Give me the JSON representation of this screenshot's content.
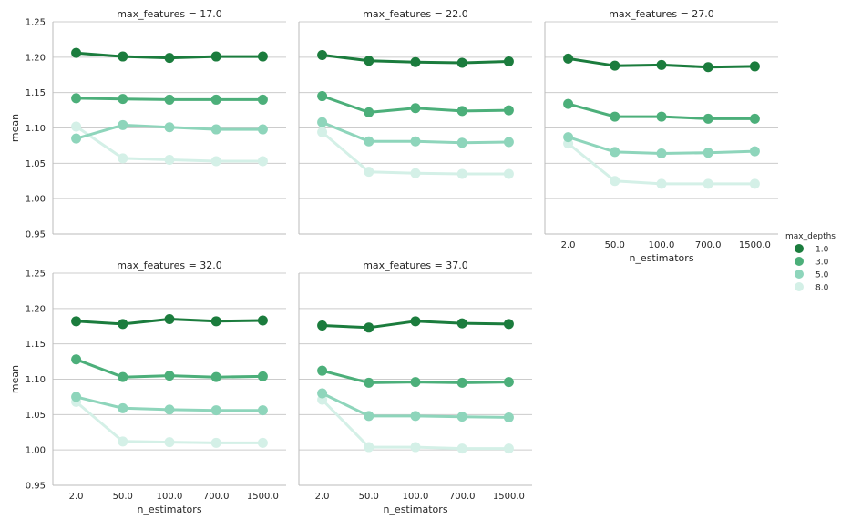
{
  "chart_data": {
    "type": "line",
    "facet_title_prefix": "max_features = ",
    "x_categories": [
      "2.0",
      "50.0",
      "100.0",
      "700.0",
      "1500.0"
    ],
    "xlabel": "n_estimators",
    "ylabel": "mean",
    "ylim": [
      0.95,
      1.25
    ],
    "y_ticks": [
      "0.95",
      "1.00",
      "1.05",
      "1.10",
      "1.15",
      "1.20",
      "1.25"
    ],
    "grid": true,
    "legend": {
      "title": "max_depths",
      "placement": "right",
      "entries": [
        {
          "label": "1.0",
          "color": "#1b7c3d"
        },
        {
          "label": "3.0",
          "color": "#4caf7a"
        },
        {
          "label": "5.0",
          "color": "#8ed5bb"
        },
        {
          "label": "8.0",
          "color": "#d4f0e7"
        }
      ]
    },
    "panels": [
      {
        "title_value": "17.0",
        "series": [
          {
            "name": "1.0",
            "values": [
              1.206,
              1.201,
              1.199,
              1.201,
              1.201
            ]
          },
          {
            "name": "3.0",
            "values": [
              1.142,
              1.141,
              1.14,
              1.14,
              1.14
            ]
          },
          {
            "name": "5.0",
            "values": [
              1.085,
              1.104,
              1.101,
              1.098,
              1.098
            ]
          },
          {
            "name": "8.0",
            "values": [
              1.102,
              1.057,
              1.055,
              1.053,
              1.053
            ]
          }
        ]
      },
      {
        "title_value": "22.0",
        "series": [
          {
            "name": "1.0",
            "values": [
              1.203,
              1.195,
              1.193,
              1.192,
              1.194
            ]
          },
          {
            "name": "3.0",
            "values": [
              1.145,
              1.122,
              1.128,
              1.124,
              1.125
            ]
          },
          {
            "name": "5.0",
            "values": [
              1.108,
              1.081,
              1.081,
              1.079,
              1.08
            ]
          },
          {
            "name": "8.0",
            "values": [
              1.094,
              1.038,
              1.036,
              1.035,
              1.035
            ]
          }
        ]
      },
      {
        "title_value": "27.0",
        "series": [
          {
            "name": "1.0",
            "values": [
              1.198,
              1.188,
              1.189,
              1.186,
              1.187
            ]
          },
          {
            "name": "3.0",
            "values": [
              1.134,
              1.116,
              1.116,
              1.113,
              1.113
            ]
          },
          {
            "name": "5.0",
            "values": [
              1.087,
              1.066,
              1.064,
              1.065,
              1.067
            ]
          },
          {
            "name": "8.0",
            "values": [
              1.078,
              1.025,
              1.021,
              1.021,
              1.021
            ]
          }
        ]
      },
      {
        "title_value": "32.0",
        "series": [
          {
            "name": "1.0",
            "values": [
              1.182,
              1.178,
              1.185,
              1.182,
              1.183
            ]
          },
          {
            "name": "3.0",
            "values": [
              1.128,
              1.103,
              1.105,
              1.103,
              1.104
            ]
          },
          {
            "name": "5.0",
            "values": [
              1.075,
              1.059,
              1.057,
              1.056,
              1.056
            ]
          },
          {
            "name": "8.0",
            "values": [
              1.068,
              1.012,
              1.011,
              1.01,
              1.01
            ]
          }
        ]
      },
      {
        "title_value": "37.0",
        "series": [
          {
            "name": "1.0",
            "values": [
              1.176,
              1.173,
              1.182,
              1.179,
              1.178
            ]
          },
          {
            "name": "3.0",
            "values": [
              1.112,
              1.095,
              1.096,
              1.095,
              1.096
            ]
          },
          {
            "name": "5.0",
            "values": [
              1.08,
              1.048,
              1.048,
              1.047,
              1.046
            ]
          },
          {
            "name": "8.0",
            "values": [
              1.071,
              1.004,
              1.004,
              1.002,
              1.002
            ]
          }
        ]
      }
    ]
  }
}
